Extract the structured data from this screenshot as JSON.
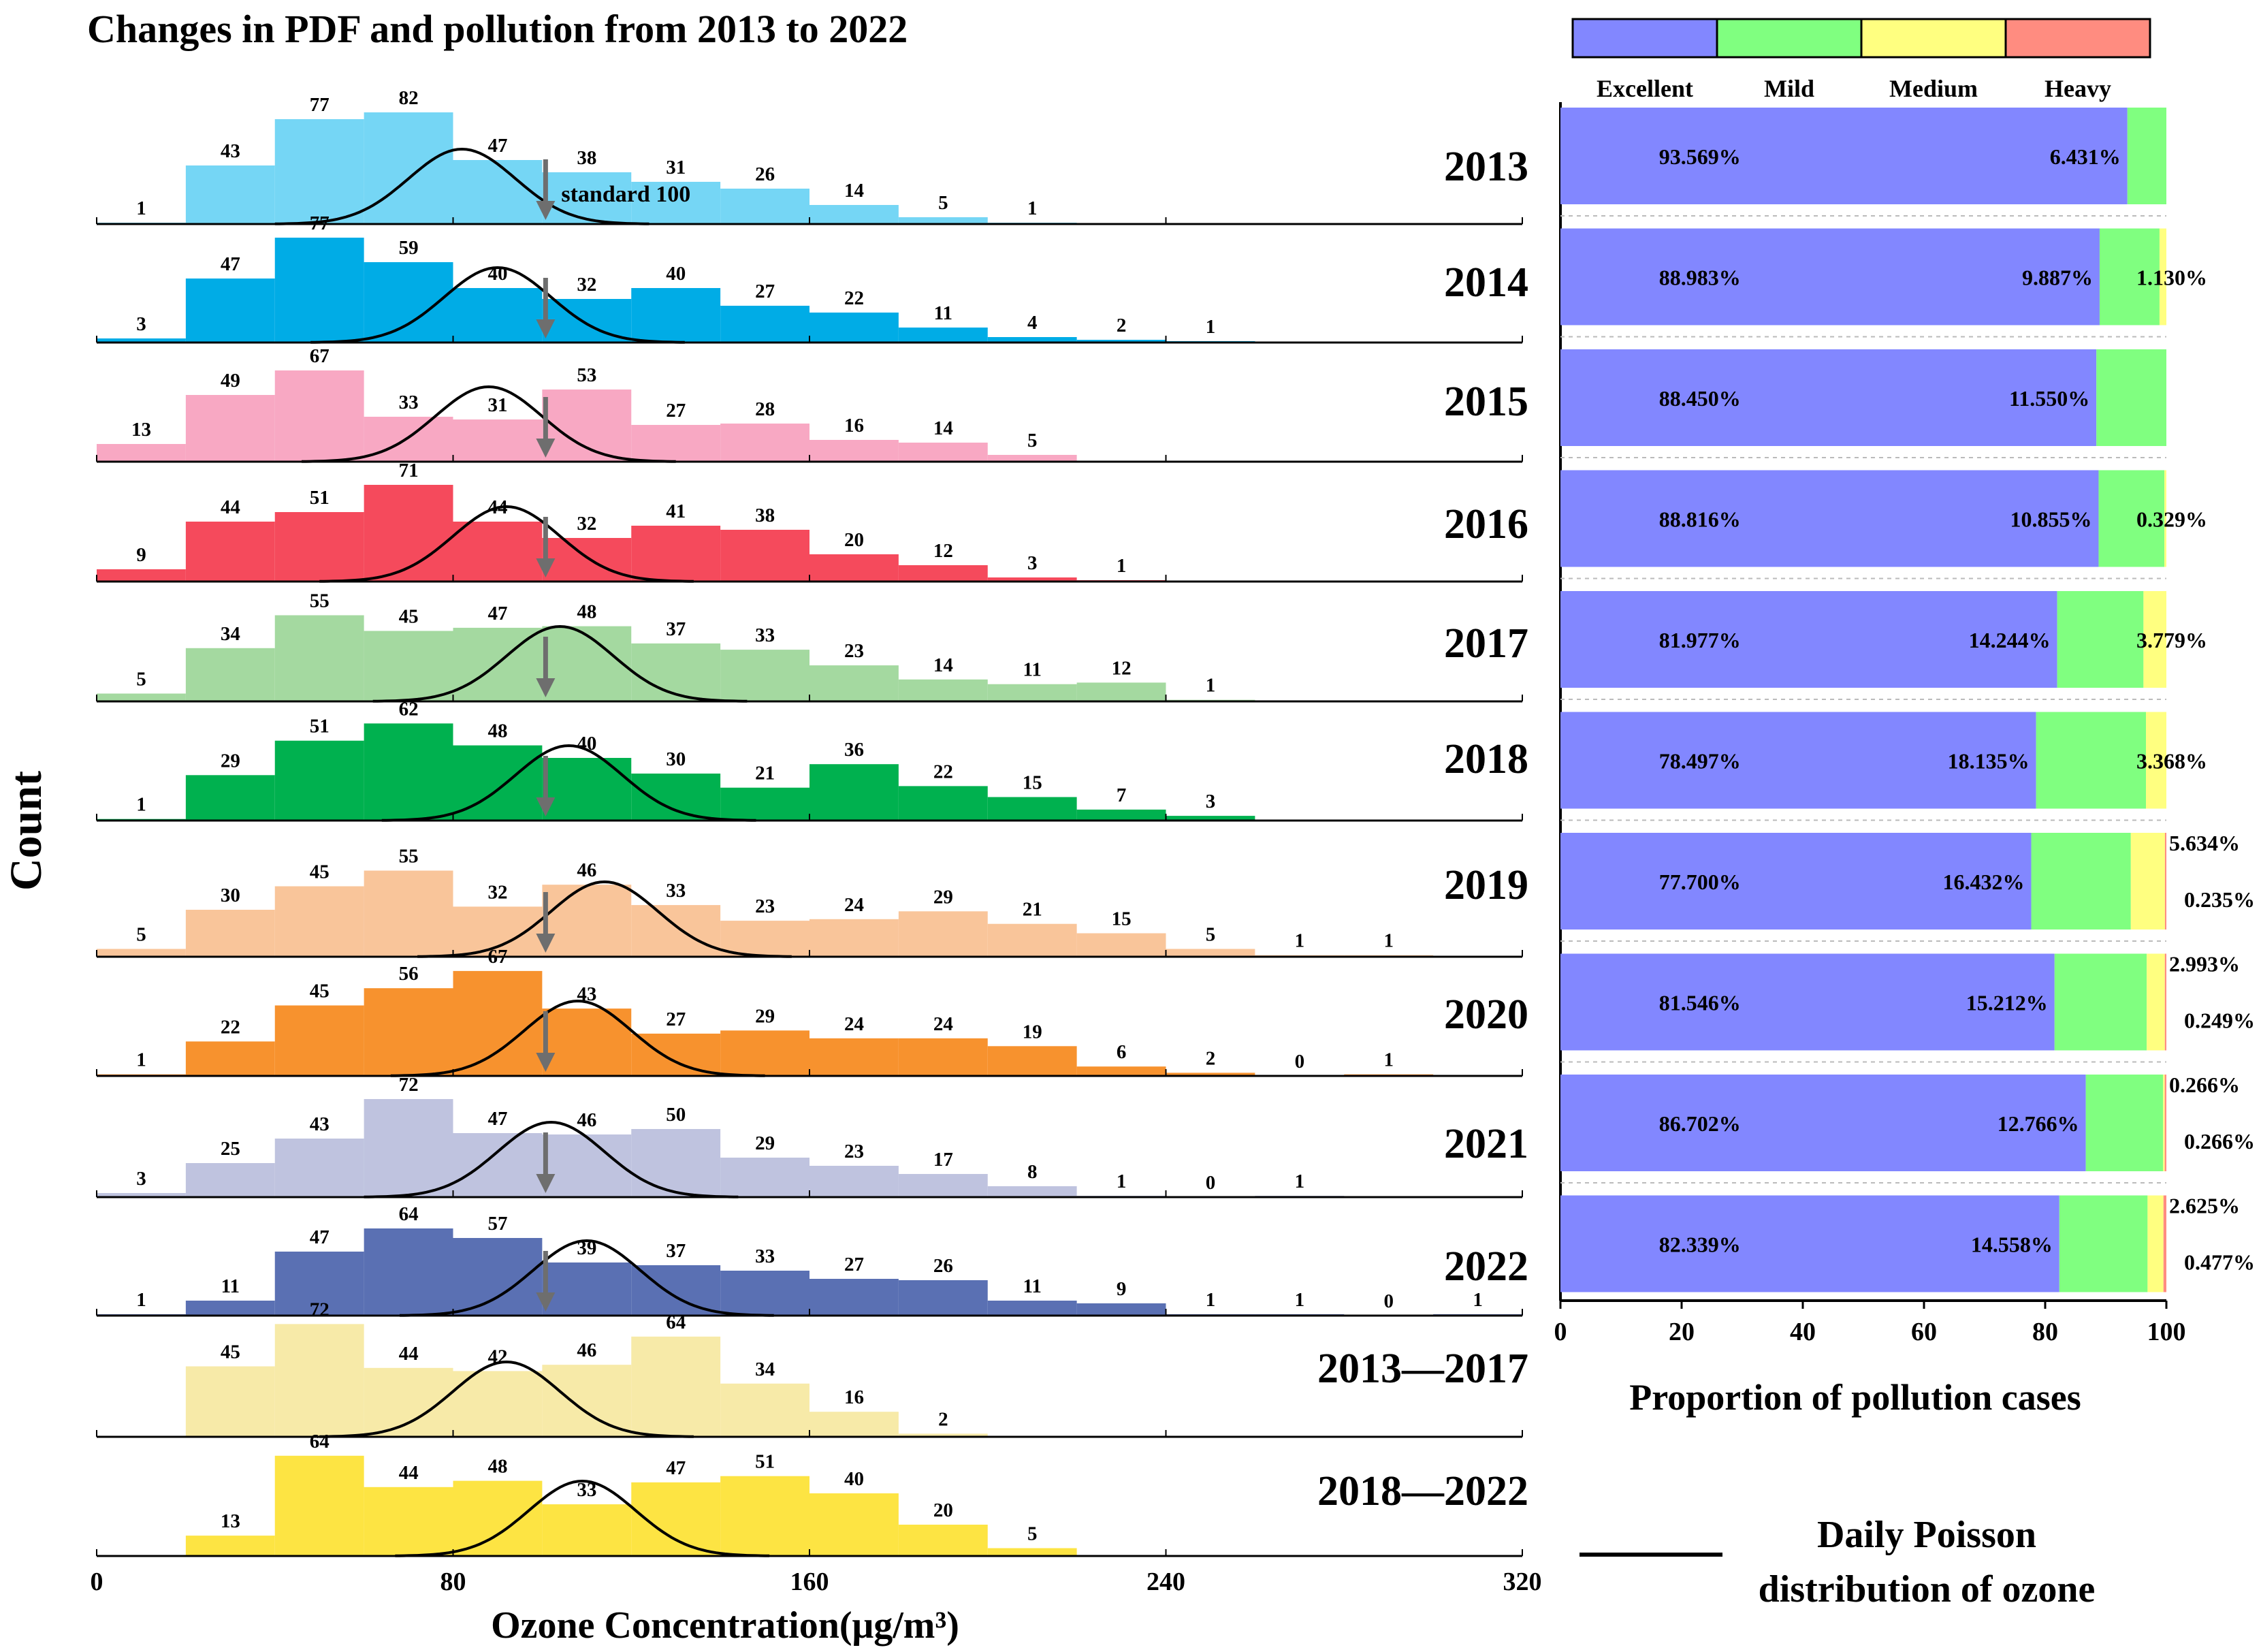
{
  "title": "Changes in PDF and pollution from 2013 to 2022",
  "y_axis_label": "Count",
  "x_axis_label": "Ozone Concentration(μg/m³)",
  "x_ticks": [
    "0",
    "80",
    "160",
    "240",
    "320"
  ],
  "standard_label": "standard 100",
  "legend_categories": [
    {
      "name": "Excellent",
      "color": "#8287ff"
    },
    {
      "name": "Mild",
      "color": "#80ff80"
    },
    {
      "name": "Medium",
      "color": "#ffff80"
    },
    {
      "name": "Heavy",
      "color": "#ff8c80"
    }
  ],
  "bar_x_ticks": [
    "0",
    "20",
    "40",
    "60",
    "80",
    "100"
  ],
  "bar_x_label": "Proportion of pollution cases",
  "poisson_legend_line1": "Daily Poisson",
  "poisson_legend_line2": "distribution of ozone",
  "chart_data": [
    {
      "type": "bar",
      "subtype": "histogram",
      "title": "Changes in PDF and pollution from 2013 to 2022",
      "xlabel": "Ozone Concentration(μg/m³)",
      "ylabel": "Count",
      "xlim": [
        0,
        320
      ],
      "bin_width": 20,
      "series": [
        {
          "name": "2013",
          "color": "#75d6f5",
          "bin_start": 0,
          "values": [
            1,
            43,
            77,
            82,
            47,
            38,
            31,
            26,
            14,
            5,
            1
          ],
          "poisson_peak_x": 82
        },
        {
          "name": "2014",
          "color": "#00ace6",
          "bin_start": 0,
          "values": [
            3,
            47,
            77,
            59,
            40,
            32,
            40,
            27,
            22,
            11,
            4,
            2,
            1
          ],
          "poisson_peak_x": 90
        },
        {
          "name": "2015",
          "color": "#f8a8c3",
          "bin_start": 0,
          "values": [
            13,
            49,
            67,
            33,
            31,
            53,
            27,
            28,
            16,
            14,
            5
          ],
          "poisson_peak_x": 88
        },
        {
          "name": "2016",
          "color": "#f54a5c",
          "bin_start": 0,
          "values": [
            9,
            44,
            51,
            71,
            44,
            32,
            41,
            38,
            20,
            12,
            3,
            1
          ],
          "poisson_peak_x": 92
        },
        {
          "name": "2017",
          "color": "#a4d9a0",
          "bin_start": 0,
          "values": [
            5,
            34,
            55,
            45,
            47,
            48,
            37,
            33,
            23,
            14,
            11,
            12,
            1
          ],
          "poisson_peak_x": 104
        },
        {
          "name": "2018",
          "color": "#00b14f",
          "bin_start": 0,
          "values": [
            1,
            29,
            51,
            62,
            48,
            40,
            30,
            21,
            36,
            22,
            15,
            7,
            3
          ],
          "poisson_peak_x": 106
        },
        {
          "name": "2019",
          "color": "#f9c59a",
          "bin_start": 0,
          "values": [
            5,
            30,
            45,
            55,
            32,
            46,
            33,
            23,
            24,
            29,
            21,
            15,
            5,
            1,
            1
          ],
          "poisson_peak_x": 114
        },
        {
          "name": "2020",
          "color": "#f7922e",
          "bin_start": 0,
          "values": [
            1,
            22,
            45,
            56,
            67,
            43,
            27,
            29,
            24,
            24,
            19,
            6,
            2,
            0,
            1
          ],
          "poisson_peak_x": 108
        },
        {
          "name": "2021",
          "color": "#bfc3df",
          "bin_start": 0,
          "values": [
            3,
            25,
            43,
            72,
            47,
            46,
            50,
            29,
            23,
            17,
            8,
            1,
            0,
            1
          ],
          "poisson_peak_x": 102
        },
        {
          "name": "2022",
          "color": "#5a70b3",
          "bin_start": 0,
          "values": [
            1,
            11,
            47,
            64,
            57,
            39,
            37,
            33,
            27,
            26,
            11,
            9,
            1,
            1,
            0,
            1
          ],
          "poisson_peak_x": 110
        },
        {
          "name": "2013—2017",
          "color": "#f7eaa8",
          "bin_start": 20,
          "values": [
            45,
            72,
            44,
            42,
            46,
            64,
            34,
            16,
            2
          ],
          "poisson_peak_x": 92
        },
        {
          "name": "2018—2022",
          "color": "#fde443",
          "bin_start": 20,
          "values": [
            13,
            64,
            44,
            48,
            33,
            47,
            51,
            40,
            20,
            5
          ],
          "poisson_peak_x": 109
        }
      ],
      "standard_line_x": 100,
      "legend": "Daily Poisson distribution of ozone"
    },
    {
      "type": "bar",
      "subtype": "stacked-horizontal",
      "xlabel": "Proportion of pollution cases",
      "xlim": [
        0,
        100
      ],
      "categories": [
        "2013",
        "2014",
        "2015",
        "2016",
        "2017",
        "2018",
        "2019",
        "2020",
        "2021",
        "2022"
      ],
      "series": [
        {
          "name": "Excellent",
          "values": [
            93.569,
            88.983,
            88.45,
            88.816,
            81.977,
            78.497,
            77.7,
            81.546,
            86.702,
            82.339
          ]
        },
        {
          "name": "Mild",
          "values": [
            6.431,
            9.887,
            11.55,
            10.855,
            14.244,
            18.135,
            16.432,
            15.212,
            12.766,
            14.558
          ]
        },
        {
          "name": "Medium",
          "values": [
            0,
            1.13,
            0,
            0.329,
            3.779,
            3.368,
            5.634,
            2.993,
            0.266,
            2.625
          ]
        },
        {
          "name": "Heavy",
          "values": [
            0,
            0,
            0,
            0,
            0,
            0,
            0.235,
            0.249,
            0.266,
            0.477
          ]
        }
      ],
      "labels": [
        {
          "year": "2013",
          "excellent": "93.569%",
          "mild": "6.431%",
          "medium": "",
          "heavy": ""
        },
        {
          "year": "2014",
          "excellent": "88.983%",
          "mild": "9.887%",
          "medium": "1.130%",
          "heavy": ""
        },
        {
          "year": "2015",
          "excellent": "88.450%",
          "mild": "11.550%",
          "medium": "",
          "heavy": ""
        },
        {
          "year": "2016",
          "excellent": "88.816%",
          "mild": "10.855%",
          "medium": "0.329%",
          "heavy": ""
        },
        {
          "year": "2017",
          "excellent": "81.977%",
          "mild": "14.244%",
          "medium": "3.779%",
          "heavy": ""
        },
        {
          "year": "2018",
          "excellent": "78.497%",
          "mild": "18.135%",
          "medium": "3.368%",
          "heavy": ""
        },
        {
          "year": "2019",
          "excellent": "77.700%",
          "mild": "16.432%",
          "medium": "5.634%",
          "heavy": "0.235%"
        },
        {
          "year": "2020",
          "excellent": "81.546%",
          "mild": "15.212%",
          "medium": "2.993%",
          "heavy": "0.249%"
        },
        {
          "year": "2021",
          "excellent": "86.702%",
          "mild": "12.766%",
          "medium": "0.266%",
          "heavy": "0.266%"
        },
        {
          "year": "2022",
          "excellent": "82.339%",
          "mild": "14.558%",
          "medium": "2.625%",
          "heavy": "0.477%"
        }
      ]
    }
  ]
}
